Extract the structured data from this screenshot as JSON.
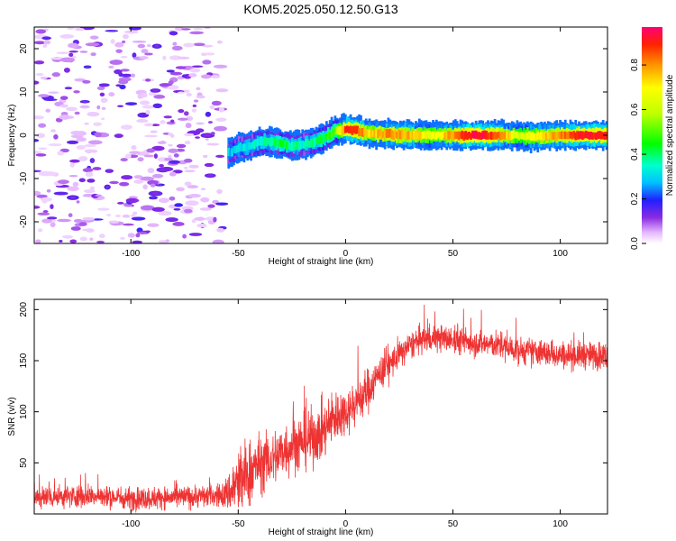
{
  "title": "KOM5.2025.050.12.50.G13",
  "chart_data": [
    {
      "type": "heatmap",
      "xlabel": "Height of straight line (km)",
      "ylabel": "Frequency (Hz)",
      "xlim": [
        -145,
        122
      ],
      "ylim": [
        -25,
        25
      ],
      "xticks": [
        -100,
        -50,
        0,
        50,
        100
      ],
      "yticks": [
        -20,
        -10,
        0,
        10,
        20
      ],
      "grid": false,
      "colorbar": {
        "label": "Normalized spectral amplitude",
        "range": [
          0,
          0.97
        ],
        "ticks": [
          0.0,
          0.2,
          0.4,
          0.6,
          0.8
        ]
      },
      "ridge": [
        {
          "x": -55,
          "y": -4.0,
          "a": 0.25
        },
        {
          "x": -50,
          "y": -3.0,
          "a": 0.28
        },
        {
          "x": -45,
          "y": -2.5,
          "a": 0.3
        },
        {
          "x": -40,
          "y": -1.5,
          "a": 0.33
        },
        {
          "x": -35,
          "y": -1.5,
          "a": 0.35
        },
        {
          "x": -30,
          "y": -2.0,
          "a": 0.4
        },
        {
          "x": -25,
          "y": -2.5,
          "a": 0.35
        },
        {
          "x": -20,
          "y": -2.0,
          "a": 0.32
        },
        {
          "x": -15,
          "y": -1.5,
          "a": 0.35
        },
        {
          "x": -10,
          "y": -0.5,
          "a": 0.42
        },
        {
          "x": -5,
          "y": 1.0,
          "a": 0.5
        },
        {
          "x": 0,
          "y": 1.5,
          "a": 0.9
        },
        {
          "x": 5,
          "y": 1.0,
          "a": 0.85
        },
        {
          "x": 10,
          "y": 0.5,
          "a": 0.7
        },
        {
          "x": 20,
          "y": 0.2,
          "a": 0.8
        },
        {
          "x": 30,
          "y": 0.0,
          "a": 0.75
        },
        {
          "x": 40,
          "y": 0.0,
          "a": 0.65
        },
        {
          "x": 50,
          "y": 0.0,
          "a": 0.8
        },
        {
          "x": 60,
          "y": 0.0,
          "a": 0.95
        },
        {
          "x": 70,
          "y": 0.0,
          "a": 0.85
        },
        {
          "x": 80,
          "y": -0.2,
          "a": 0.6
        },
        {
          "x": 90,
          "y": -0.3,
          "a": 0.7
        },
        {
          "x": 100,
          "y": 0.0,
          "a": 0.8
        },
        {
          "x": 110,
          "y": 0.0,
          "a": 0.9
        },
        {
          "x": 122,
          "y": 0.0,
          "a": 0.9
        }
      ],
      "noise_region": {
        "x": [
          -145,
          -57
        ],
        "y": [
          -25,
          25
        ],
        "a_range": [
          0.0,
          0.15
        ]
      }
    },
    {
      "type": "line",
      "xlabel": "Height of straight line (km)",
      "ylabel": "SNR (v/v)",
      "xlim": [
        -145,
        122
      ],
      "ylim": [
        0,
        210
      ],
      "xticks": [
        -100,
        -50,
        0,
        50,
        100
      ],
      "yticks": [
        50,
        100,
        150,
        200
      ],
      "grid": false,
      "series": [
        {
          "color": "#ee3333",
          "x": [
            -145,
            -120,
            -100,
            -80,
            -60,
            -55,
            -50,
            -45,
            -40,
            -35,
            -30,
            -25,
            -20,
            -15,
            -10,
            -5,
            0,
            5,
            10,
            15,
            20,
            25,
            30,
            35,
            40,
            45,
            50,
            60,
            70,
            80,
            90,
            100,
            110,
            122
          ],
          "y": [
            16,
            18,
            15,
            16,
            18,
            20,
            30,
            40,
            50,
            52,
            60,
            68,
            70,
            75,
            82,
            95,
            100,
            110,
            120,
            135,
            145,
            155,
            165,
            170,
            172,
            172,
            170,
            168,
            165,
            160,
            158,
            156,
            155,
            155
          ],
          "noise": [
            10,
            10,
            10,
            10,
            10,
            15,
            35,
            30,
            25,
            25,
            25,
            25,
            25,
            25,
            25,
            25,
            20,
            20,
            20,
            15,
            15,
            12,
            12,
            12,
            12,
            12,
            12,
            12,
            12,
            12,
            12,
            12,
            12,
            12
          ]
        }
      ]
    }
  ]
}
